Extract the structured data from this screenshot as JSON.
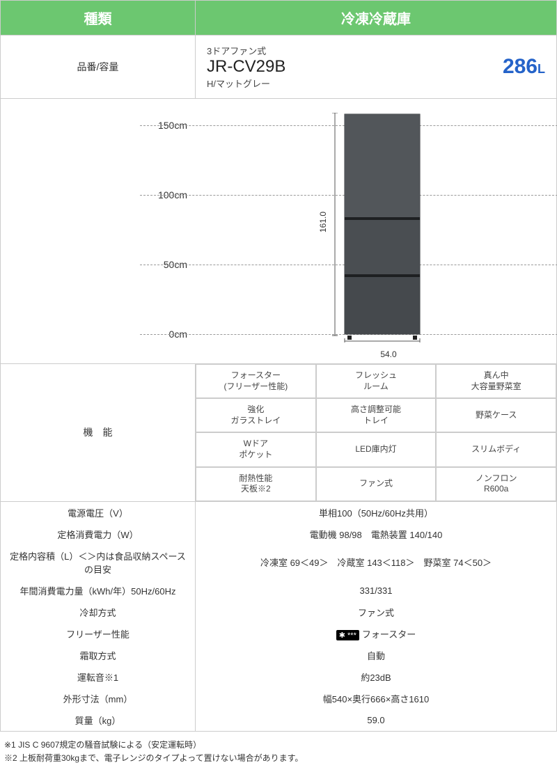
{
  "header": {
    "type_label": "種類",
    "product_label": "冷凍冷蔵庫"
  },
  "model": {
    "row_label": "品番/容量",
    "subtitle": "3ドアファン式",
    "number": "JR-CV29B",
    "color": "H/マットグレー",
    "capacity_value": "286",
    "capacity_unit": "L"
  },
  "diagram": {
    "scale_marks": [
      "150cm",
      "100cm",
      "50cm",
      "0cm"
    ],
    "height_dim": "161.0",
    "width_dim": "54.0",
    "fridge_color": "#4a4e52",
    "fridge_dark": "#2f3235"
  },
  "features": {
    "row_label": "機　能",
    "items": [
      "フォースター\n(フリーザー性能)",
      "フレッシュ\nルーム",
      "真ん中\n大容量野菜室",
      "強化\nガラストレイ",
      "高さ調整可能\nトレイ",
      "野菜ケース",
      "Wドア\nポケット",
      "LED庫内灯",
      "スリムボディ",
      "耐熱性能\n天板※2",
      "ファン式",
      "ノンフロン\nR600a"
    ]
  },
  "specs": [
    {
      "label": "電源電圧（V）",
      "value": "単相100（50Hz/60Hz共用）"
    },
    {
      "label": "定格消費電力（W）",
      "value": "電動機 98/98　電熱装置 140/140"
    },
    {
      "label": "定格内容積（L）＜＞内は食品収納スペースの目安",
      "value": "冷凍室 69＜49＞　冷蔵室 143＜118＞　野菜室 74＜50＞"
    },
    {
      "label": "年間消費電力量（kWh/年）50Hz/60Hz",
      "value": "331/331"
    },
    {
      "label": "冷却方式",
      "value": "ファン式"
    },
    {
      "label": "フリーザー性能",
      "value": "フォースター",
      "icon": "freezer"
    },
    {
      "label": "霜取方式",
      "value": "自動"
    },
    {
      "label": "運転音※1",
      "value": "約23dB"
    },
    {
      "label": "外形寸法（mm）",
      "value": "幅540×奥行666×高さ1610"
    },
    {
      "label": "質量（kg）",
      "value": "59.0"
    }
  ],
  "footnotes": [
    "※1 JIS C 9607規定の騒音試験による（安定運転時）",
    "※2 上板耐荷重30kgまで、電子レンジのタイプよって置けない場合があります。"
  ],
  "colors": {
    "header_bg": "#6cc770",
    "border": "#cccccc",
    "capacity": "#2563c9"
  }
}
